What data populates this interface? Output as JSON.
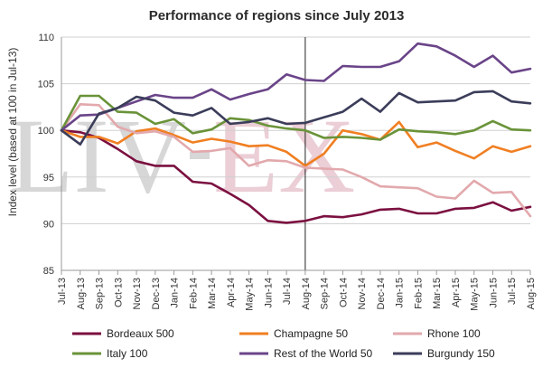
{
  "chart_data": {
    "type": "line",
    "title": "Performance of regions since July 2013",
    "ylabel": "Index level (based at 100 in Jul-13)",
    "xlabel": "",
    "watermark": [
      "LIV",
      "EX"
    ],
    "ylim": [
      85,
      110
    ],
    "yticks": [
      85,
      90,
      95,
      100,
      105,
      110
    ],
    "grid": true,
    "legend_position": "bottom",
    "marker_x": "Aug-14",
    "categories": [
      "Jul-13",
      "Aug-13",
      "Sep-13",
      "Oct-13",
      "Nov-13",
      "Dec-13",
      "Jan-14",
      "Feb-14",
      "Mar-14",
      "Apr-14",
      "May-14",
      "Jun-14",
      "Jul-14",
      "Aug-14",
      "Sep-14",
      "Oct-14",
      "Nov-14",
      "Dec-14",
      "Jan-15",
      "Feb-15",
      "Mar-15",
      "Apr-15",
      "May-15",
      "Jun-15",
      "Jul-15",
      "Aug-15"
    ],
    "series": [
      {
        "name": "Bordeaux 500",
        "color": "#7b1040",
        "values": [
          100,
          99.8,
          99.2,
          98.0,
          96.7,
          96.2,
          96.2,
          94.5,
          94.3,
          93.2,
          92.0,
          90.3,
          90.1,
          90.3,
          90.8,
          90.7,
          91.0,
          91.5,
          91.6,
          91.1,
          91.1,
          91.6,
          91.7,
          92.3,
          91.4,
          91.8
        ]
      },
      {
        "name": "Champagne 50",
        "color": "#f07f22",
        "values": [
          100,
          99.3,
          99.3,
          98.6,
          99.9,
          100.2,
          99.5,
          98.7,
          99.1,
          98.8,
          98.3,
          98.4,
          97.7,
          96.2,
          97.5,
          100.0,
          99.6,
          99.0,
          100.9,
          98.2,
          98.7,
          97.8,
          97.0,
          98.3,
          97.7,
          98.3
        ]
      },
      {
        "name": "Rhone 100",
        "color": "#e2a9ad",
        "values": [
          100,
          102.8,
          102.7,
          100.4,
          99.7,
          99.9,
          99.3,
          97.7,
          97.8,
          98.1,
          96.2,
          96.8,
          96.7,
          96.0,
          95.9,
          95.8,
          95.0,
          94.0,
          93.9,
          93.8,
          92.9,
          92.7,
          94.6,
          93.3,
          93.4,
          90.8
        ]
      },
      {
        "name": "Italy 100",
        "color": "#6a9339",
        "values": [
          100,
          103.7,
          103.7,
          102.0,
          101.9,
          100.7,
          101.2,
          99.7,
          100.1,
          101.3,
          101.1,
          100.5,
          100.2,
          100.0,
          99.2,
          99.3,
          99.2,
          99.0,
          100.1,
          99.9,
          99.8,
          99.6,
          100.0,
          101.0,
          100.1,
          100.0
        ]
      },
      {
        "name": "Rest of the World 50",
        "color": "#6a4488",
        "values": [
          100,
          101.6,
          101.7,
          102.4,
          103.1,
          103.8,
          103.5,
          103.5,
          104.4,
          103.3,
          103.9,
          104.4,
          106.0,
          105.4,
          105.3,
          106.9,
          106.8,
          106.8,
          107.4,
          109.3,
          109.0,
          108.0,
          106.8,
          108.0,
          106.2,
          106.6
        ]
      },
      {
        "name": "Burgundy 150",
        "color": "#3b3d5a",
        "values": [
          100,
          98.5,
          101.8,
          102.4,
          103.6,
          103.2,
          101.9,
          101.6,
          102.4,
          100.7,
          100.9,
          101.3,
          100.7,
          100.8,
          101.4,
          102.0,
          103.4,
          102.0,
          104.0,
          103.0,
          103.1,
          103.2,
          104.1,
          104.2,
          103.1,
          102.9
        ]
      }
    ]
  }
}
